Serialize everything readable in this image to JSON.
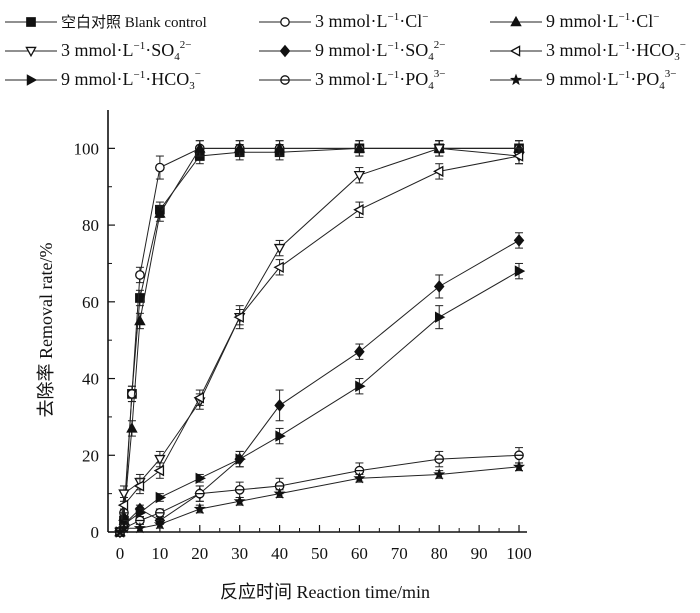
{
  "chart_data": {
    "type": "line",
    "xlabel": "反应时间 Reaction time/min",
    "ylabel": "去除率 Removal rate/%",
    "xlim": [
      -3,
      102
    ],
    "ylim": [
      0,
      110
    ],
    "xticks": [
      0,
      10,
      20,
      30,
      40,
      50,
      60,
      70,
      80,
      90,
      100
    ],
    "yticks": [
      0,
      20,
      40,
      60,
      80,
      100
    ],
    "grid": false,
    "legend_position": "top",
    "series": [
      {
        "name": "空白对照 Blank control",
        "marker": "filled-square",
        "x": [
          0,
          1,
          3,
          5,
          10,
          20,
          30,
          40,
          60,
          80,
          100
        ],
        "y": [
          0,
          3,
          36,
          61,
          84,
          98,
          99,
          99,
          100,
          100,
          100
        ],
        "err": [
          0,
          1,
          2,
          2,
          2,
          2,
          2,
          2,
          2,
          2,
          2
        ]
      },
      {
        "name_parts": {
          "value": "3 mmol·L",
          "sup": "−1",
          "mid": "·Cl",
          "ion_sup": "−"
        },
        "marker": "open-circle",
        "x": [
          0,
          1,
          3,
          5,
          10,
          20,
          30,
          40,
          60,
          80,
          100
        ],
        "y": [
          0,
          5,
          36,
          67,
          95,
          100,
          100,
          100,
          100,
          100,
          100
        ],
        "err": [
          0,
          1,
          2,
          2,
          3,
          2,
          2,
          2,
          2,
          2,
          2
        ]
      },
      {
        "name_parts": {
          "value": "9 mmol·L",
          "sup": "−1",
          "mid": "·Cl",
          "ion_sup": "−"
        },
        "marker": "filled-triangle",
        "x": [
          0,
          1,
          3,
          5,
          10,
          20,
          30,
          40,
          60,
          80,
          100
        ],
        "y": [
          0,
          4,
          27,
          55,
          83,
          100,
          100,
          100,
          100,
          100,
          100
        ],
        "err": [
          0,
          1,
          2,
          2,
          2,
          2,
          2,
          2,
          2,
          2,
          2
        ]
      },
      {
        "name_parts": {
          "value": "3 mmol·L",
          "sup": "−1",
          "mid": "·SO",
          "sub": "4",
          "ion_sup": "2−"
        },
        "marker": "open-down-triangle",
        "x": [
          0,
          1,
          5,
          10,
          20,
          30,
          40,
          60,
          80,
          100
        ],
        "y": [
          0,
          10,
          13,
          19,
          34,
          56,
          74,
          93,
          100,
          98
        ],
        "err": [
          0,
          2,
          2,
          2,
          2,
          2,
          2,
          2,
          2,
          2
        ]
      },
      {
        "name_parts": {
          "value": "9 mmol·L",
          "sup": "−1",
          "mid": "·SO",
          "sub": "4",
          "ion_sup": "2−"
        },
        "marker": "filled-diamond",
        "x": [
          0,
          1,
          5,
          10,
          20,
          30,
          40,
          60,
          80,
          100
        ],
        "y": [
          0,
          2,
          6,
          3,
          10,
          19,
          33,
          47,
          64,
          76
        ],
        "err": [
          0,
          1,
          1,
          1,
          2,
          2,
          4,
          2,
          3,
          2
        ]
      },
      {
        "name_parts": {
          "value": "3 mmol·L",
          "sup": "−1",
          "mid": "·HCO",
          "sub": "3",
          "ion_sup": "−"
        },
        "marker": "open-left-triangle",
        "x": [
          0,
          1,
          5,
          10,
          20,
          30,
          40,
          60,
          80,
          100
        ],
        "y": [
          0,
          7,
          12,
          16,
          35,
          56,
          69,
          84,
          94,
          98
        ],
        "err": [
          0,
          2,
          2,
          2,
          2,
          3,
          2,
          2,
          2,
          2
        ]
      },
      {
        "name_parts": {
          "value": "9 mmol·L",
          "sup": "−1",
          "mid": "·HCO",
          "sub": "3",
          "ion_sup": "−"
        },
        "marker": "filled-right-triangle",
        "x": [
          0,
          1,
          5,
          10,
          20,
          30,
          40,
          60,
          80,
          100
        ],
        "y": [
          0,
          2,
          5,
          9,
          14,
          19,
          25,
          38,
          56,
          68
        ],
        "err": [
          0,
          1,
          1,
          1,
          1,
          2,
          2,
          2,
          3,
          2
        ]
      },
      {
        "name_parts": {
          "value": "3 mmol·L",
          "sup": "−1",
          "mid": "·PO",
          "sub": "4",
          "ion_sup": "3−"
        },
        "marker": "open-circle-line",
        "x": [
          0,
          1,
          5,
          10,
          20,
          30,
          40,
          60,
          80,
          100
        ],
        "y": [
          0,
          1,
          3,
          5,
          10,
          11,
          12,
          16,
          19,
          20
        ],
        "err": [
          0,
          1,
          1,
          1,
          2,
          2,
          2,
          2,
          2,
          2
        ]
      },
      {
        "name_parts": {
          "value": "9 mmol·L",
          "sup": "−1",
          "mid": "·PO",
          "sub": "4",
          "ion_sup": "3−"
        },
        "marker": "filled-star",
        "x": [
          0,
          1,
          5,
          10,
          20,
          30,
          40,
          60,
          80,
          100
        ],
        "y": [
          0,
          1,
          1,
          2,
          6,
          8,
          10,
          14,
          15,
          17
        ],
        "err": [
          0,
          1,
          1,
          1,
          1,
          1,
          1,
          1,
          1,
          1
        ]
      }
    ]
  }
}
